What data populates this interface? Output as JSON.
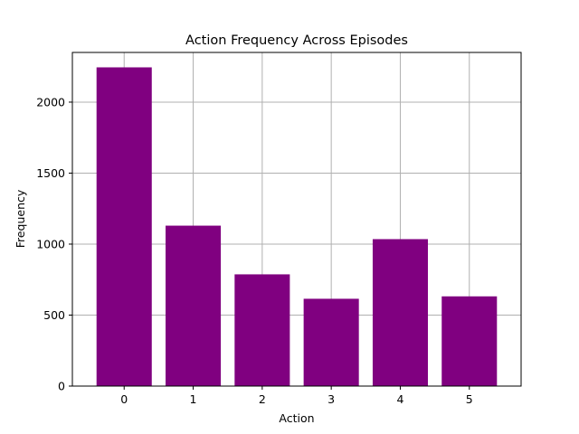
{
  "chart_data": {
    "type": "bar",
    "title": "Action Frequency Across Episodes",
    "xlabel": "Action",
    "ylabel": "Frequency",
    "categories": [
      "0",
      "1",
      "2",
      "3",
      "4",
      "5"
    ],
    "values": [
      2245,
      1130,
      787,
      615,
      1035,
      632
    ],
    "ylim": [
      0,
      2350
    ],
    "yticks": [
      0,
      500,
      1000,
      1500,
      2000
    ],
    "grid": true,
    "bar_color": "#800080"
  }
}
